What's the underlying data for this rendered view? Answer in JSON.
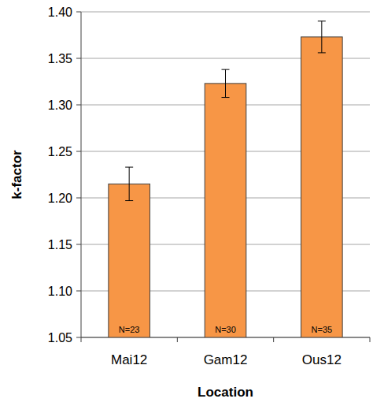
{
  "chart_data": {
    "type": "bar",
    "x_label": "Location",
    "y_label": "k-factor",
    "categories": [
      "Mai12",
      "Gam12",
      "Ous12"
    ],
    "values": [
      1.215,
      1.323,
      1.373
    ],
    "errors": [
      0.018,
      0.015,
      0.017
    ],
    "annotations": [
      "N=23",
      "N=30",
      "N=35"
    ],
    "color": "#f79646",
    "ylim": [
      1.05,
      1.4
    ],
    "yticks": [
      1.05,
      {
        "value": 1.1,
        "label": "1.10"
      },
      1.15,
      {
        "value": 1.2,
        "label": "1.20"
      },
      1.25,
      {
        "value": 1.3,
        "label": "1.30"
      },
      1.35,
      {
        "value": 1.4,
        "label": "1.40"
      }
    ],
    "grid": true
  }
}
